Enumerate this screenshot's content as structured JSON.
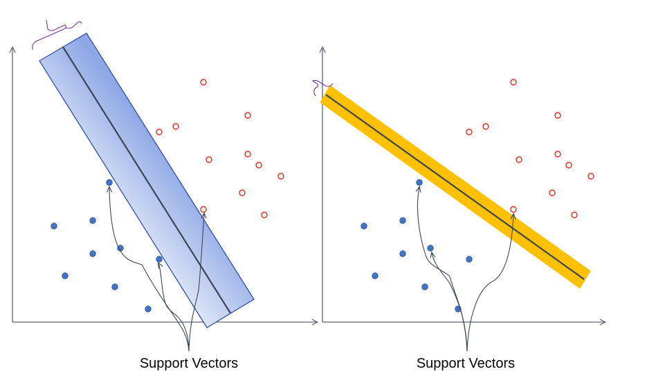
{
  "panels": [
    {
      "name": "left",
      "caption": "Support Vectors",
      "margin_style": "wide-gradient",
      "margin_colors": [
        "#d9e1f5",
        "#8ea8e6"
      ],
      "margin_outline": "#2f4ea8",
      "class_a_points": 9,
      "class_b_points": 10,
      "support_vectors": 3
    },
    {
      "name": "right",
      "caption": "Support Vectors",
      "margin_style": "narrow-solid",
      "margin_colors": [
        "#ffc000"
      ],
      "margin_outline": "#ffc000",
      "class_a_points": 9,
      "class_b_points": 10,
      "support_vectors": 3
    }
  ],
  "colors": {
    "axis": "#5b6477",
    "hyperplane": "#3a4556",
    "class_a_fill": "#4472c4",
    "class_a_stroke": "#2f5597",
    "class_b_stroke": "#e0301e",
    "brace": "#7030a0",
    "arrow": "#3a4556"
  }
}
